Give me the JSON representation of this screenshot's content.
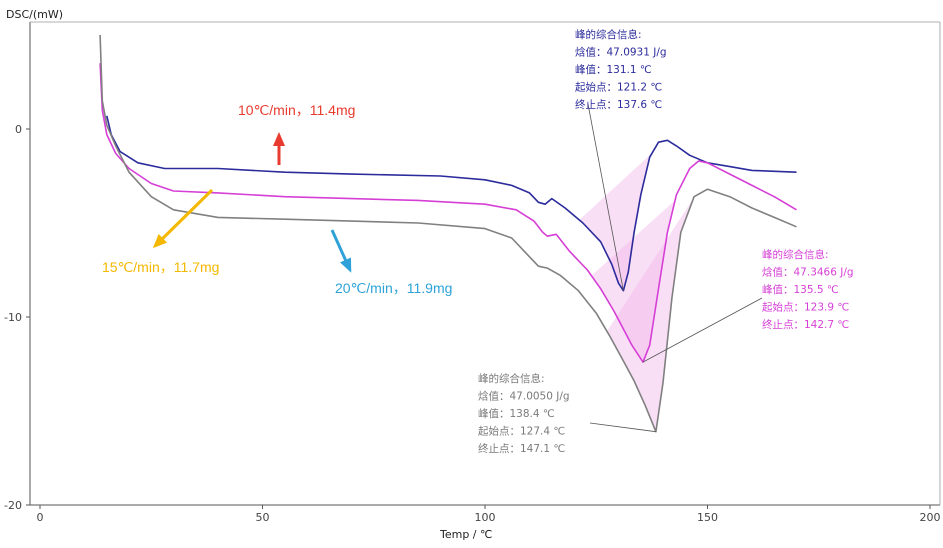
{
  "chart_data": {
    "type": "line",
    "ylabel": "DSC/(mW)",
    "xlabel": "Temp / ℃",
    "xlim": [
      0,
      200
    ],
    "ylim": [
      -20,
      5
    ],
    "x_ticks": [
      "0",
      "50",
      "100",
      "150",
      "200"
    ],
    "y_ticks": [
      "0",
      "-10",
      "-20"
    ],
    "series": [
      {
        "name": "10℃/min，11.4mg",
        "color": "#2b2b9c",
        "points": [
          [
            15,
            0.7
          ],
          [
            16,
            -0.3
          ],
          [
            18,
            -1.2
          ],
          [
            22,
            -1.8
          ],
          [
            28,
            -2.1
          ],
          [
            40,
            -2.1
          ],
          [
            55,
            -2.3
          ],
          [
            70,
            -2.4
          ],
          [
            90,
            -2.5
          ],
          [
            100,
            -2.7
          ],
          [
            106,
            -3.0
          ],
          [
            110,
            -3.4
          ],
          [
            112,
            -3.9
          ],
          [
            113.5,
            -4.0
          ],
          [
            115,
            -3.7
          ],
          [
            118,
            -4.2
          ],
          [
            122,
            -5.0
          ],
          [
            126,
            -6.0
          ],
          [
            128.5,
            -7.2
          ],
          [
            130,
            -8.2
          ],
          [
            131.1,
            -8.6
          ],
          [
            132.2,
            -7.6
          ],
          [
            133.5,
            -5.5
          ],
          [
            135,
            -3.5
          ],
          [
            137,
            -1.5
          ],
          [
            139,
            -0.7
          ],
          [
            141,
            -0.6
          ],
          [
            143,
            -0.9
          ],
          [
            146,
            -1.4
          ],
          [
            150,
            -1.8
          ],
          [
            155,
            -2.0
          ],
          [
            160,
            -2.2
          ],
          [
            170,
            -2.3
          ]
        ]
      },
      {
        "name": "15℃/min，11.7mg",
        "color": "#d63fd6",
        "points": [
          [
            13.5,
            3.5
          ],
          [
            14,
            1.0
          ],
          [
            15,
            -0.3
          ],
          [
            17,
            -1.3
          ],
          [
            20,
            -2.1
          ],
          [
            25,
            -2.9
          ],
          [
            30,
            -3.3
          ],
          [
            40,
            -3.4
          ],
          [
            55,
            -3.6
          ],
          [
            70,
            -3.7
          ],
          [
            85,
            -3.8
          ],
          [
            100,
            -4.0
          ],
          [
            107,
            -4.3
          ],
          [
            111,
            -4.9
          ],
          [
            113,
            -5.5
          ],
          [
            114,
            -5.7
          ],
          [
            116,
            -5.6
          ],
          [
            119,
            -6.5
          ],
          [
            123,
            -7.5
          ],
          [
            126,
            -8.5
          ],
          [
            129,
            -9.7
          ],
          [
            131,
            -10.6
          ],
          [
            133,
            -11.5
          ],
          [
            135.5,
            -12.4
          ],
          [
            137,
            -11.5
          ],
          [
            139,
            -8.5
          ],
          [
            141,
            -5.5
          ],
          [
            143,
            -3.5
          ],
          [
            146,
            -2.1
          ],
          [
            148,
            -1.7
          ],
          [
            150,
            -1.8
          ],
          [
            155,
            -2.4
          ],
          [
            160,
            -3.0
          ],
          [
            165,
            -3.6
          ],
          [
            170,
            -4.3
          ]
        ]
      },
      {
        "name": "20℃/min，11.9mg",
        "color": "#808080",
        "points": [
          [
            13.5,
            5.0
          ],
          [
            14,
            1.5
          ],
          [
            15,
            0.2
          ],
          [
            17,
            -0.9
          ],
          [
            20,
            -2.3
          ],
          [
            25,
            -3.6
          ],
          [
            30,
            -4.3
          ],
          [
            40,
            -4.7
          ],
          [
            55,
            -4.8
          ],
          [
            70,
            -4.9
          ],
          [
            85,
            -5.0
          ],
          [
            100,
            -5.3
          ],
          [
            106,
            -5.8
          ],
          [
            110,
            -6.8
          ],
          [
            112,
            -7.3
          ],
          [
            114,
            -7.4
          ],
          [
            117,
            -7.8
          ],
          [
            121,
            -8.6
          ],
          [
            125,
            -9.8
          ],
          [
            128,
            -11.0
          ],
          [
            131,
            -12.3
          ],
          [
            133.5,
            -13.4
          ],
          [
            136,
            -14.7
          ],
          [
            138.4,
            -16.1
          ],
          [
            140,
            -13.5
          ],
          [
            142,
            -9.0
          ],
          [
            144,
            -5.5
          ],
          [
            147,
            -3.6
          ],
          [
            150,
            -3.2
          ],
          [
            155,
            -3.6
          ],
          [
            160,
            -4.2
          ],
          [
            165,
            -4.7
          ],
          [
            170,
            -5.2
          ]
        ]
      }
    ],
    "rate_labels": [
      {
        "series": 0,
        "text": "10℃/min，11.4mg",
        "color": "#e83a2e"
      },
      {
        "series": 1,
        "text": "15℃/min，11.7mg",
        "color": "#f5b800"
      },
      {
        "series": 2,
        "text": "20℃/min，11.9mg",
        "color": "#2ea2d8"
      }
    ],
    "annotations": [
      {
        "series": 0,
        "color": "#2b2b9c",
        "lines": [
          "峰的综合信息:",
          "焓值：47.0931 J/g",
          "峰值：131.1 ℃",
          "起始点：121.2 ℃",
          "终止点：137.6 ℃"
        ],
        "peak": [
          131.1,
          -8.6
        ],
        "onset": 121.2,
        "end": 137.6
      },
      {
        "series": 1,
        "color": "#d63fd6",
        "lines": [
          "峰的综合信息:",
          "焓值：47.3466 J/g",
          "峰值：135.5 ℃",
          "起始点：123.9 ℃",
          "终止点：142.7 ℃"
        ],
        "peak": [
          135.5,
          -12.4
        ],
        "onset": 123.9,
        "end": 142.7
      },
      {
        "series": 2,
        "color": "#7a7a7a",
        "lines": [
          "峰的综合信息:",
          "焓值：47.0050 J/g",
          "峰值：138.4 ℃",
          "起始点：127.4 ℃",
          "终止点：147.1 ℃"
        ],
        "peak": [
          138.4,
          -16.1
        ],
        "onset": 127.4,
        "end": 147.1
      }
    ],
    "grid": false
  }
}
